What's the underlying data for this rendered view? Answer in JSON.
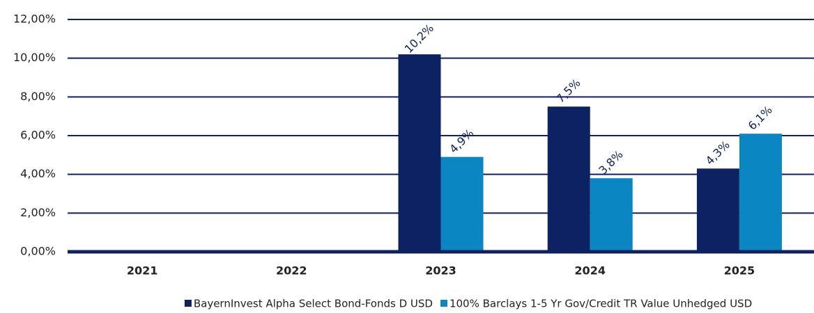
{
  "chart_data": {
    "type": "bar",
    "categories": [
      "2021",
      "2022",
      "2023",
      "2024",
      "2025"
    ],
    "series": [
      {
        "name": "BayernInvest Alpha Select Bond-Fonds D USD",
        "color": "#0c2262",
        "values": [
          null,
          null,
          10.2,
          7.5,
          4.3
        ],
        "value_labels": [
          null,
          null,
          "10,2%",
          "7,5%",
          "4,3%"
        ]
      },
      {
        "name": "100% Barclays 1-5 Yr Gov/Credit TR Value Unhedged USD",
        "color": "#0a86c3",
        "values": [
          null,
          null,
          4.9,
          3.8,
          6.1
        ],
        "value_labels": [
          null,
          null,
          "4,9%",
          "3,8%",
          "6,1%"
        ]
      }
    ],
    "ylim": [
      0,
      12
    ],
    "yticks": [
      {
        "value": 0,
        "label": "0,00%"
      },
      {
        "value": 2,
        "label": "2,00%"
      },
      {
        "value": 4,
        "label": "4,00%"
      },
      {
        "value": 6,
        "label": "6,00%"
      },
      {
        "value": 8,
        "label": "8,00%"
      },
      {
        "value": 10,
        "label": "10,00%"
      },
      {
        "value": 12,
        "label": "12,00%"
      }
    ],
    "grid": true
  }
}
